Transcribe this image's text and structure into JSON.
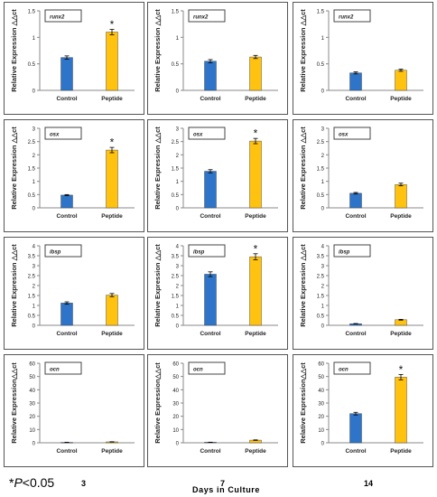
{
  "footer": {
    "significance_prefix": "*",
    "significance_p": "P",
    "significance_value": "<0.05",
    "days": [
      "3",
      "7",
      "14"
    ],
    "days_caption": "Days  in  Culture"
  },
  "chart_data": [
    {
      "type": "bar",
      "gene": "runx2",
      "day": "3",
      "categories": [
        "Control",
        "Peptide"
      ],
      "values": [
        0.62,
        1.1
      ],
      "errors": [
        0.03,
        0.05
      ],
      "significant": [
        false,
        true
      ],
      "ylim": [
        0,
        1.5
      ],
      "yticks": [
        "0",
        "0.5",
        "1",
        "1.5"
      ],
      "ylabel": "Relative Expression △△ct",
      "colors": [
        "#2e75c9",
        "#ffc20f"
      ]
    },
    {
      "type": "bar",
      "gene": "runx2",
      "day": "7",
      "categories": [
        "Control",
        "Peptide"
      ],
      "values": [
        0.55,
        0.63
      ],
      "errors": [
        0.03,
        0.03
      ],
      "significant": [
        false,
        false
      ],
      "ylim": [
        0,
        1.5
      ],
      "yticks": [
        "0",
        "0.5",
        "1",
        "1.5"
      ],
      "ylabel": "Relative Expression △△ct",
      "colors": [
        "#2e75c9",
        "#ffc20f"
      ]
    },
    {
      "type": "bar",
      "gene": "runx2",
      "day": "14",
      "categories": [
        "Control",
        "Peptide"
      ],
      "values": [
        0.33,
        0.38
      ],
      "errors": [
        0.02,
        0.02
      ],
      "significant": [
        false,
        false
      ],
      "ylim": [
        0,
        1.5
      ],
      "yticks": [
        "0",
        "0.5",
        "1",
        "1.5"
      ],
      "ylabel": "Relative Expression △△ct",
      "colors": [
        "#2e75c9",
        "#ffc20f"
      ]
    },
    {
      "type": "bar",
      "gene": "osx",
      "day": "3",
      "categories": [
        "Control",
        "Peptide"
      ],
      "values": [
        0.48,
        2.18
      ],
      "errors": [
        0.02,
        0.1
      ],
      "significant": [
        false,
        true
      ],
      "ylim": [
        0,
        3
      ],
      "yticks": [
        "0",
        "0.5",
        "1",
        "1.5",
        "2",
        "2.5",
        "3"
      ],
      "ylabel": "Relative Expression △△ct",
      "colors": [
        "#2e75c9",
        "#ffc20f"
      ]
    },
    {
      "type": "bar",
      "gene": "osx",
      "day": "7",
      "categories": [
        "Control",
        "Peptide"
      ],
      "values": [
        1.38,
        2.52
      ],
      "errors": [
        0.06,
        0.1
      ],
      "significant": [
        false,
        true
      ],
      "ylim": [
        0,
        3
      ],
      "yticks": [
        "0",
        "0.5",
        "1",
        "1.5",
        "2",
        "2.5",
        "3"
      ],
      "ylabel": "Relative Expression △△ct",
      "colors": [
        "#2e75c9",
        "#ffc20f"
      ]
    },
    {
      "type": "bar",
      "gene": "osx",
      "day": "14",
      "categories": [
        "Control",
        "Peptide"
      ],
      "values": [
        0.55,
        0.88
      ],
      "errors": [
        0.03,
        0.05
      ],
      "significant": [
        false,
        false
      ],
      "ylim": [
        0,
        3
      ],
      "yticks": [
        "0",
        "0.5",
        "1",
        "1.5",
        "2",
        "2.5",
        "3"
      ],
      "ylabel": "Relative Expression △△ct",
      "colors": [
        "#2e75c9",
        "#ffc20f"
      ]
    },
    {
      "type": "bar",
      "gene": "ibsp",
      "day": "3",
      "categories": [
        "Control",
        "Peptide"
      ],
      "values": [
        1.12,
        1.52
      ],
      "errors": [
        0.06,
        0.08
      ],
      "significant": [
        false,
        false
      ],
      "ylim": [
        0,
        4
      ],
      "yticks": [
        "0",
        "0.5",
        "1",
        "1.5",
        "2",
        "2.5",
        "3",
        "3.5",
        "4"
      ],
      "ylabel": "Relative Expression △△ct",
      "colors": [
        "#2e75c9",
        "#ffc20f"
      ]
    },
    {
      "type": "bar",
      "gene": "ibsp",
      "day": "7",
      "categories": [
        "Control",
        "Peptide"
      ],
      "values": [
        2.57,
        3.45
      ],
      "errors": [
        0.12,
        0.15
      ],
      "significant": [
        false,
        true
      ],
      "ylim": [
        0,
        4
      ],
      "yticks": [
        "0",
        "0.5",
        "1",
        "1.5",
        "2",
        "2.5",
        "3",
        "3.5",
        "4"
      ],
      "ylabel": "Relative Expression △△ct",
      "colors": [
        "#2e75c9",
        "#ffc20f"
      ]
    },
    {
      "type": "bar",
      "gene": "ibsp",
      "day": "14",
      "categories": [
        "Control",
        "Peptide"
      ],
      "values": [
        0.08,
        0.28
      ],
      "errors": [
        0.01,
        0.02
      ],
      "significant": [
        false,
        false
      ],
      "ylim": [
        0,
        4
      ],
      "yticks": [
        "0",
        "0.5",
        "1",
        "1.5",
        "2",
        "2.5",
        "3",
        "3.5",
        "4"
      ],
      "ylabel": "Relative Expression △△ct",
      "colors": [
        "#2e75c9",
        "#ffc20f"
      ]
    },
    {
      "type": "bar",
      "gene": "ocn",
      "day": "3",
      "categories": [
        "Control",
        "Peptide"
      ],
      "values": [
        0.3,
        0.7
      ],
      "errors": [
        0.05,
        0.1
      ],
      "significant": [
        false,
        false
      ],
      "ylim": [
        0,
        60
      ],
      "yticks": [
        "0",
        "10",
        "20",
        "30",
        "40",
        "50",
        "60"
      ],
      "ylabel": "Relative Expression△△ct",
      "colors": [
        "#2e75c9",
        "#ffc20f"
      ]
    },
    {
      "type": "bar",
      "gene": "ocn",
      "day": "7",
      "categories": [
        "Control",
        "Peptide"
      ],
      "values": [
        0.4,
        2.0
      ],
      "errors": [
        0.05,
        0.2
      ],
      "significant": [
        false,
        false
      ],
      "ylim": [
        0,
        60
      ],
      "yticks": [
        "0",
        "10",
        "20",
        "30",
        "40",
        "50",
        "60"
      ],
      "ylabel": "Relative Expression△△ct",
      "colors": [
        "#2e75c9",
        "#ffc20f"
      ]
    },
    {
      "type": "bar",
      "gene": "ocn",
      "day": "14",
      "categories": [
        "Control",
        "Peptide"
      ],
      "values": [
        22,
        49.5
      ],
      "errors": [
        1.0,
        2.0
      ],
      "significant": [
        false,
        true
      ],
      "ylim": [
        0,
        60
      ],
      "yticks": [
        "0",
        "10",
        "20",
        "30",
        "40",
        "50",
        "60"
      ],
      "ylabel": "Relative Expression△△ct",
      "colors": [
        "#2e75c9",
        "#ffc20f"
      ]
    }
  ]
}
